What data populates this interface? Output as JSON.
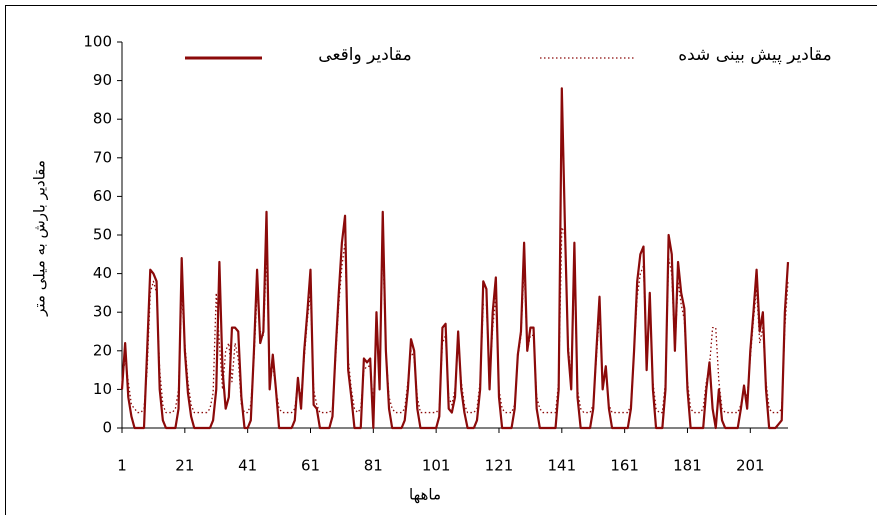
{
  "chart_data": {
    "type": "line",
    "x_label": "ماهها",
    "y_label": "مقادیر بارش به میلی متر",
    "x": [
      1,
      2,
      3,
      4,
      5,
      6,
      7,
      8,
      9,
      10,
      11,
      12,
      13,
      14,
      15,
      16,
      17,
      18,
      19,
      20,
      21,
      22,
      23,
      24,
      25,
      26,
      27,
      28,
      29,
      30,
      31,
      32,
      33,
      34,
      35,
      36,
      37,
      38,
      39,
      40,
      41,
      42,
      43,
      44,
      45,
      46,
      47,
      48,
      49,
      50,
      51,
      52,
      53,
      54,
      55,
      56,
      57,
      58,
      59,
      60,
      61,
      62,
      63,
      64,
      65,
      66,
      67,
      68,
      69,
      70,
      71,
      72,
      73,
      74,
      75,
      76,
      77,
      78,
      79,
      80,
      81,
      82,
      83,
      84,
      85,
      86,
      87,
      88,
      89,
      90,
      91,
      92,
      93,
      94,
      95,
      96,
      97,
      98,
      99,
      100,
      101,
      102,
      103,
      104,
      105,
      106,
      107,
      108,
      109,
      110,
      111,
      112,
      113,
      114,
      115,
      116,
      117,
      118,
      119,
      120,
      121,
      122,
      123,
      124,
      125,
      126,
      127,
      128,
      129,
      130,
      131,
      132,
      133,
      134,
      135,
      136,
      137,
      138,
      139,
      140,
      141,
      142,
      143,
      144,
      145,
      146,
      147,
      148,
      149,
      150,
      151,
      152,
      153,
      154,
      155,
      156,
      157,
      158,
      159,
      160,
      161,
      162,
      163,
      164,
      165,
      166,
      167,
      168,
      169,
      170,
      171,
      172,
      173,
      174,
      175,
      176,
      177,
      178,
      179,
      180,
      181,
      182,
      183,
      184,
      185,
      186,
      187,
      188,
      189,
      190,
      191,
      192,
      193,
      194,
      195,
      196,
      197,
      198,
      199,
      200,
      201,
      202,
      203,
      204,
      205,
      206,
      207,
      208,
      209,
      210,
      211,
      212,
      213
    ],
    "series": [
      {
        "name": "مقادیر واقعی",
        "color": "#8b0a0a",
        "style": "solid",
        "values": [
          10,
          22,
          8,
          3,
          0,
          0,
          0,
          0,
          20,
          41,
          40,
          38,
          10,
          2,
          0,
          0,
          0,
          0,
          5,
          44,
          20,
          9,
          3,
          0,
          0,
          0,
          0,
          0,
          0,
          2,
          10,
          43,
          15,
          5,
          8,
          26,
          26,
          25,
          8,
          0,
          0,
          2,
          20,
          41,
          22,
          25,
          56,
          10,
          19,
          10,
          0,
          0,
          0,
          0,
          0,
          2,
          13,
          5,
          20,
          30,
          41,
          6,
          5,
          0,
          0,
          0,
          0,
          3,
          20,
          35,
          48,
          55,
          15,
          8,
          0,
          0,
          0,
          18,
          17,
          18,
          0,
          30,
          10,
          56,
          20,
          5,
          0,
          0,
          0,
          0,
          2,
          10,
          23,
          20,
          5,
          0,
          0,
          0,
          0,
          0,
          0,
          3,
          26,
          27,
          5,
          4,
          8,
          25,
          10,
          4,
          0,
          0,
          0,
          2,
          10,
          38,
          36,
          10,
          30,
          39,
          8,
          0,
          0,
          0,
          0,
          5,
          19,
          25,
          48,
          20,
          26,
          26,
          5,
          0,
          0,
          0,
          0,
          0,
          0,
          10,
          88,
          52,
          20,
          10,
          48,
          8,
          0,
          0,
          0,
          0,
          5,
          20,
          34,
          10,
          16,
          5,
          0,
          0,
          0,
          0,
          0,
          0,
          5,
          20,
          38,
          45,
          47,
          15,
          35,
          10,
          0,
          0,
          0,
          10,
          50,
          45,
          20,
          43,
          35,
          31,
          10,
          0,
          0,
          0,
          0,
          0,
          10,
          17,
          5,
          0,
          10,
          2,
          0,
          0,
          0,
          0,
          0,
          5,
          11,
          5,
          20,
          30,
          41,
          25,
          30,
          10,
          0,
          0,
          0,
          1,
          2,
          30,
          43
        ]
      },
      {
        "name": "مقادیر پیش بینی شده",
        "color": "#8b0a0a",
        "style": "dotted",
        "values": [
          12,
          18,
          12,
          6,
          5,
          4,
          4,
          5,
          15,
          35,
          38,
          35,
          15,
          6,
          4,
          4,
          4,
          5,
          10,
          35,
          22,
          12,
          6,
          4,
          4,
          4,
          4,
          4,
          5,
          9,
          35,
          22,
          10,
          20,
          22,
          12,
          22,
          18,
          6,
          4,
          4,
          6,
          18,
          35,
          25,
          24,
          45,
          15,
          16,
          10,
          5,
          4,
          4,
          4,
          4,
          5,
          12,
          8,
          18,
          28,
          35,
          10,
          6,
          4,
          4,
          4,
          4,
          5,
          18,
          32,
          42,
          48,
          18,
          10,
          5,
          4,
          5,
          15,
          16,
          16,
          6,
          26,
          14,
          48,
          20,
          8,
          5,
          4,
          4,
          4,
          5,
          12,
          20,
          18,
          8,
          4,
          4,
          4,
          4,
          4,
          4,
          5,
          22,
          24,
          8,
          6,
          10,
          22,
          12,
          6,
          4,
          4,
          4,
          5,
          12,
          32,
          32,
          12,
          26,
          34,
          10,
          5,
          4,
          4,
          4,
          6,
          18,
          24,
          42,
          20,
          24,
          24,
          8,
          5,
          4,
          4,
          4,
          4,
          4,
          12,
          52,
          50,
          22,
          12,
          42,
          10,
          5,
          4,
          4,
          4,
          6,
          18,
          30,
          12,
          15,
          6,
          4,
          4,
          4,
          4,
          4,
          4,
          6,
          20,
          34,
          40,
          42,
          18,
          32,
          12,
          5,
          4,
          4,
          12,
          44,
          40,
          20,
          38,
          32,
          28,
          12,
          5,
          4,
          4,
          4,
          5,
          12,
          16,
          26,
          26,
          12,
          5,
          4,
          4,
          4,
          4,
          4,
          6,
          10,
          8,
          18,
          28,
          36,
          22,
          26,
          12,
          5,
          4,
          4,
          4,
          5,
          26,
          38
        ]
      }
    ],
    "xlim": [
      1,
      213
    ],
    "xticks": [
      1,
      21,
      41,
      61,
      81,
      101,
      121,
      141,
      161,
      181,
      201
    ],
    "ylim": [
      0,
      100
    ],
    "yticks": [
      0,
      10,
      20,
      30,
      40,
      50,
      60,
      70,
      80,
      90,
      100
    ],
    "grid": false
  }
}
